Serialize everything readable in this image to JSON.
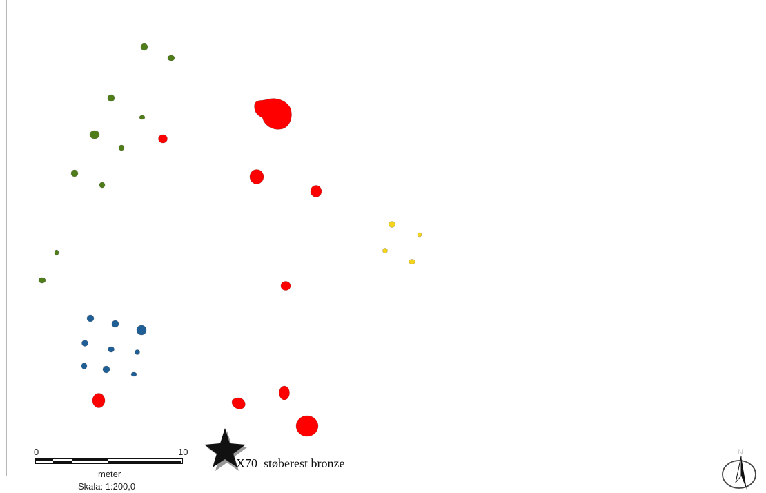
{
  "map": {
    "colors": {
      "green": "#4f7d1a",
      "red": "#ff0000",
      "blue": "#1f5f96",
      "yellow": "#f5d51c",
      "star": "#111111",
      "star_shadow": "#999999"
    },
    "feature_groups": [
      {
        "name": "green-postholes",
        "color": "green"
      },
      {
        "name": "red-pits",
        "color": "red"
      },
      {
        "name": "blue-postholes",
        "color": "blue"
      },
      {
        "name": "yellow-postholes",
        "color": "yellow"
      }
    ]
  },
  "find": {
    "id": "X70",
    "description": "støberest bronze",
    "icon": "star-icon"
  },
  "scalebar": {
    "start_label": "0",
    "end_label": "10",
    "unit": "meter",
    "scale_text": "Skala: 1:200,0"
  },
  "north_arrow": {
    "label": "N",
    "icon": "north-arrow-icon"
  }
}
